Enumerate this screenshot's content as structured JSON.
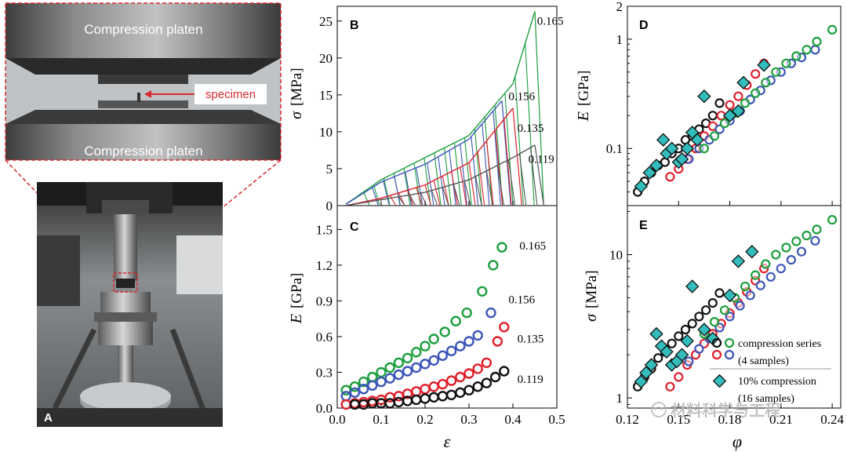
{
  "photo": {
    "panel_label": "A",
    "top_platen_label": "Compression platen",
    "bottom_platen_label": "Compression platen",
    "specimen_label": "specimen"
  },
  "watermark": "材料科学与工程",
  "colors": {
    "green": "#1b9e3c",
    "blue": "#3b55b8",
    "red": "#e01f2b",
    "black": "#111111",
    "gray": "#555555",
    "teal": "#33bcbc",
    "callout": "#d7292f"
  },
  "chart_data": [
    {
      "id": "B",
      "type": "line",
      "panel_label": "B",
      "ylabel_symbol": "σ",
      "ylabel_unit": "[MPa]",
      "ylim": [
        0,
        27
      ],
      "xlim": [
        0,
        0.5
      ],
      "yticks": [
        0,
        5,
        10,
        15,
        20,
        25
      ],
      "series": [
        {
          "name": "0.165",
          "color_key": "green",
          "envelope": [
            [
              0.02,
              0.2
            ],
            [
              0.1,
              3.5
            ],
            [
              0.2,
              6.5
            ],
            [
              0.3,
              9.5
            ],
            [
              0.4,
              16.5
            ],
            [
              0.45,
              26.3
            ]
          ]
        },
        {
          "name": "0.156",
          "color_key": "blue",
          "envelope": [
            [
              0.02,
              0.2
            ],
            [
              0.1,
              3.2
            ],
            [
              0.2,
              5.6
            ],
            [
              0.3,
              9.0
            ],
            [
              0.375,
              14.2
            ]
          ]
        },
        {
          "name": "0.135",
          "color_key": "red",
          "envelope": [
            [
              0.02,
              0.0
            ],
            [
              0.1,
              1.0
            ],
            [
              0.2,
              2.8
            ],
            [
              0.3,
              5.8
            ],
            [
              0.4,
              13.2
            ]
          ]
        },
        {
          "name": "0.119",
          "color_key": "gray",
          "envelope": [
            [
              0.02,
              0.0
            ],
            [
              0.1,
              0.8
            ],
            [
              0.2,
              1.8
            ],
            [
              0.3,
              3.5
            ],
            [
              0.4,
              6.5
            ],
            [
              0.45,
              8.2
            ]
          ]
        }
      ],
      "curve_labels": [
        {
          "text": "0.165",
          "x": 0.455,
          "y": 24.5
        },
        {
          "text": "0.156",
          "x": 0.39,
          "y": 14.3
        },
        {
          "text": "0.135",
          "x": 0.41,
          "y": 10.0
        },
        {
          "text": "0.119",
          "x": 0.435,
          "y": 5.8
        }
      ]
    },
    {
      "id": "C",
      "type": "scatter",
      "panel_label": "C",
      "xlabel": "ε",
      "ylabel_symbol": "E",
      "ylabel_unit": "[GPa]",
      "xlim": [
        0,
        0.5
      ],
      "ylim": [
        0,
        1.7
      ],
      "xticks": [
        0,
        0.1,
        0.2,
        0.3,
        0.4,
        0.5
      ],
      "yticks": [
        0,
        0.3,
        0.6,
        0.9,
        1.2,
        1.5
      ],
      "xtick_labels": [
        "0.0",
        "0.1",
        "0.2",
        "0.3",
        "0.4",
        "0.5"
      ],
      "ytick_labels": [
        "0.0",
        "0.3",
        "0.6",
        "0.9",
        "1.2",
        "1.5"
      ],
      "series": [
        {
          "name": "0.165",
          "color_key": "green",
          "x": [
            0.02,
            0.04,
            0.06,
            0.08,
            0.1,
            0.12,
            0.14,
            0.16,
            0.18,
            0.2,
            0.22,
            0.245,
            0.27,
            0.295,
            0.33,
            0.355,
            0.375
          ],
          "y": [
            0.15,
            0.18,
            0.22,
            0.26,
            0.3,
            0.34,
            0.38,
            0.42,
            0.47,
            0.52,
            0.58,
            0.64,
            0.73,
            0.8,
            0.98,
            1.2,
            1.35
          ]
        },
        {
          "name": "0.156",
          "color_key": "blue",
          "x": [
            0.02,
            0.04,
            0.06,
            0.08,
            0.1,
            0.12,
            0.14,
            0.16,
            0.18,
            0.2,
            0.22,
            0.24,
            0.26,
            0.28,
            0.3,
            0.32,
            0.35
          ],
          "y": [
            0.1,
            0.13,
            0.16,
            0.19,
            0.22,
            0.25,
            0.28,
            0.31,
            0.34,
            0.37,
            0.4,
            0.44,
            0.48,
            0.52,
            0.56,
            0.61,
            0.8
          ]
        },
        {
          "name": "0.135",
          "color_key": "red",
          "x": [
            0.02,
            0.04,
            0.06,
            0.08,
            0.1,
            0.12,
            0.14,
            0.16,
            0.18,
            0.2,
            0.22,
            0.24,
            0.26,
            0.28,
            0.3,
            0.32,
            0.34,
            0.365,
            0.38
          ],
          "y": [
            0.03,
            0.04,
            0.05,
            0.06,
            0.07,
            0.09,
            0.1,
            0.12,
            0.14,
            0.16,
            0.18,
            0.2,
            0.23,
            0.26,
            0.29,
            0.33,
            0.38,
            0.56,
            0.68
          ]
        },
        {
          "name": "0.119",
          "color_key": "black",
          "x": [
            0.04,
            0.06,
            0.08,
            0.1,
            0.12,
            0.14,
            0.16,
            0.18,
            0.2,
            0.22,
            0.24,
            0.26,
            0.28,
            0.3,
            0.32,
            0.34,
            0.36,
            0.38
          ],
          "y": [
            0.03,
            0.03,
            0.04,
            0.04,
            0.04,
            0.05,
            0.06,
            0.07,
            0.08,
            0.09,
            0.1,
            0.11,
            0.13,
            0.15,
            0.18,
            0.21,
            0.26,
            0.31
          ]
        }
      ],
      "curve_labels": [
        {
          "text": "0.165",
          "x": 0.415,
          "y": 1.33
        },
        {
          "text": "0.156",
          "x": 0.39,
          "y": 0.88
        },
        {
          "text": "0.135",
          "x": 0.41,
          "y": 0.55
        },
        {
          "text": "0.119",
          "x": 0.41,
          "y": 0.21
        }
      ]
    },
    {
      "id": "D",
      "type": "scatter",
      "panel_label": "D",
      "ylabel_symbol": "E",
      "ylabel_unit": "[GPa]",
      "yscale": "log",
      "xlim": [
        0.12,
        0.245
      ],
      "ylim": [
        0.03,
        2
      ],
      "yticks": [
        0.1,
        1,
        2
      ],
      "ytick_labels": [
        "0.1",
        "1",
        "2"
      ],
      "series": [
        {
          "name": "0.119",
          "color_key": "black",
          "marker": "open-circle",
          "x": [
            0.126,
            0.13,
            0.134,
            0.138,
            0.142,
            0.146,
            0.15,
            0.154,
            0.158,
            0.162,
            0.166,
            0.17,
            0.174
          ],
          "y": [
            0.04,
            0.05,
            0.06,
            0.07,
            0.075,
            0.09,
            0.1,
            0.12,
            0.13,
            0.15,
            0.17,
            0.2,
            0.26
          ]
        },
        {
          "name": "0.135",
          "color_key": "red",
          "marker": "open-circle",
          "x": [
            0.145,
            0.15,
            0.155,
            0.16,
            0.165,
            0.17,
            0.175,
            0.18,
            0.185,
            0.19,
            0.195,
            0.2
          ],
          "y": [
            0.055,
            0.065,
            0.08,
            0.1,
            0.13,
            0.16,
            0.2,
            0.25,
            0.3,
            0.38,
            0.48,
            0.6
          ]
        },
        {
          "name": "0.156",
          "color_key": "blue",
          "marker": "open-circle",
          "x": [
            0.156,
            0.162,
            0.168,
            0.174,
            0.18,
            0.186,
            0.192,
            0.198,
            0.204,
            0.21,
            0.216,
            0.222,
            0.23
          ],
          "y": [
            0.08,
            0.1,
            0.12,
            0.15,
            0.18,
            0.22,
            0.28,
            0.34,
            0.42,
            0.5,
            0.6,
            0.68,
            0.8
          ]
        },
        {
          "name": "0.165",
          "color_key": "green",
          "marker": "open-circle",
          "x": [
            0.165,
            0.171,
            0.177,
            0.183,
            0.189,
            0.195,
            0.201,
            0.207,
            0.213,
            0.219,
            0.225,
            0.231,
            0.24
          ],
          "y": [
            0.1,
            0.13,
            0.17,
            0.21,
            0.26,
            0.32,
            0.4,
            0.5,
            0.6,
            0.7,
            0.8,
            0.95,
            1.22
          ]
        },
        {
          "name": "10% compression",
          "color_key": "teal",
          "marker": "diamond",
          "x": [
            0.128,
            0.133,
            0.137,
            0.141,
            0.143,
            0.146,
            0.15,
            0.152,
            0.155,
            0.158,
            0.161,
            0.165,
            0.18,
            0.185,
            0.188,
            0.2
          ],
          "y": [
            0.045,
            0.06,
            0.07,
            0.12,
            0.09,
            0.1,
            0.075,
            0.08,
            0.1,
            0.14,
            0.12,
            0.3,
            0.2,
            0.22,
            0.4,
            0.58
          ]
        }
      ]
    },
    {
      "id": "E",
      "type": "scatter",
      "panel_label": "E",
      "xlabel": "φ",
      "ylabel_symbol": "σ",
      "ylabel_unit": "[MPa]",
      "yscale": "log",
      "xlim": [
        0.12,
        0.245
      ],
      "ylim": [
        0.85,
        22
      ],
      "xticks": [
        0.12,
        0.15,
        0.18,
        0.21,
        0.24
      ],
      "xtick_labels": [
        "0.12",
        "0.15",
        "0.18",
        "0.21",
        "0.24"
      ],
      "yticks": [
        1,
        10
      ],
      "ytick_labels": [
        "1",
        "10"
      ],
      "legend": [
        {
          "label": "compression series",
          "sublabel": "(4 samples)"
        },
        {
          "label": "10% compression",
          "sublabel": "(16 samples)"
        }
      ],
      "series": [
        {
          "name": "0.119",
          "color_key": "black",
          "marker": "open-circle",
          "x": [
            0.126,
            0.13,
            0.134,
            0.138,
            0.142,
            0.146,
            0.15,
            0.154,
            0.158,
            0.162,
            0.166,
            0.17,
            0.174
          ],
          "y": [
            1.2,
            1.4,
            1.6,
            1.9,
            2.1,
            2.4,
            2.7,
            3.0,
            3.3,
            3.7,
            4.1,
            4.6,
            5.4
          ]
        },
        {
          "name": "0.135",
          "color_key": "red",
          "marker": "open-circle",
          "x": [
            0.145,
            0.15,
            0.155,
            0.16,
            0.165,
            0.17,
            0.175,
            0.18,
            0.185,
            0.19,
            0.195,
            0.2
          ],
          "y": [
            1.2,
            1.4,
            1.7,
            2.0,
            2.4,
            2.8,
            3.3,
            3.9,
            4.6,
            5.5,
            6.6,
            8.0
          ]
        },
        {
          "name": "0.156",
          "color_key": "blue",
          "marker": "open-circle",
          "x": [
            0.156,
            0.162,
            0.168,
            0.174,
            0.18,
            0.186,
            0.192,
            0.198,
            0.204,
            0.21,
            0.216,
            0.222,
            0.23
          ],
          "y": [
            1.8,
            2.2,
            2.6,
            3.1,
            3.7,
            4.4,
            5.2,
            6.1,
            7.0,
            8.0,
            9.2,
            10.5,
            12.5
          ]
        },
        {
          "name": "0.165",
          "color_key": "green",
          "marker": "open-circle",
          "x": [
            0.165,
            0.171,
            0.177,
            0.183,
            0.189,
            0.195,
            0.201,
            0.207,
            0.213,
            0.219,
            0.225,
            0.231,
            0.24
          ],
          "y": [
            2.8,
            3.4,
            4.1,
            5.0,
            6.0,
            7.2,
            8.6,
            10.0,
            11.2,
            12.4,
            13.6,
            15.0,
            17.5
          ]
        },
        {
          "name": "10% compression",
          "color_key": "teal",
          "marker": "diamond",
          "x": [
            0.128,
            0.131,
            0.134,
            0.137,
            0.14,
            0.143,
            0.146,
            0.149,
            0.152,
            0.155,
            0.158,
            0.165,
            0.17,
            0.18,
            0.185,
            0.193
          ],
          "y": [
            1.3,
            1.5,
            1.7,
            2.8,
            2.3,
            2.1,
            1.7,
            1.8,
            2.0,
            2.5,
            6.0,
            3.0,
            2.6,
            5.2,
            9.0,
            10.5
          ]
        }
      ]
    }
  ]
}
